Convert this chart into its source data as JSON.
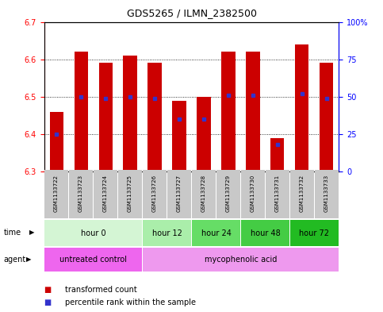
{
  "title": "GDS5265 / ILMN_2382500",
  "samples": [
    "GSM1133722",
    "GSM1133723",
    "GSM1133724",
    "GSM1133725",
    "GSM1133726",
    "GSM1133727",
    "GSM1133728",
    "GSM1133729",
    "GSM1133730",
    "GSM1133731",
    "GSM1133732",
    "GSM1133733"
  ],
  "bar_bottom": 6.3,
  "bar_top": [
    6.46,
    6.62,
    6.59,
    6.61,
    6.59,
    6.49,
    6.5,
    6.62,
    6.62,
    6.39,
    6.64,
    6.59
  ],
  "percentile_rank": [
    25,
    50,
    49,
    50,
    49,
    35,
    35,
    51,
    51,
    18,
    52,
    49
  ],
  "ylim_left": [
    6.3,
    6.7
  ],
  "ylim_right": [
    0,
    100
  ],
  "yticks_left": [
    6.3,
    6.4,
    6.5,
    6.6,
    6.7
  ],
  "yticks_right": [
    0,
    25,
    50,
    75,
    100
  ],
  "ytick_labels_right": [
    "0",
    "25",
    "50",
    "75",
    "100%"
  ],
  "bar_color": "#cc0000",
  "percentile_color": "#3333cc",
  "time_groups": [
    {
      "label": "hour 0",
      "start": 0,
      "end": 4,
      "color": "#d4f5d4"
    },
    {
      "label": "hour 12",
      "start": 4,
      "end": 6,
      "color": "#aaeeaa"
    },
    {
      "label": "hour 24",
      "start": 6,
      "end": 8,
      "color": "#66dd66"
    },
    {
      "label": "hour 48",
      "start": 8,
      "end": 10,
      "color": "#44cc44"
    },
    {
      "label": "hour 72",
      "start": 10,
      "end": 12,
      "color": "#22bb22"
    }
  ],
  "agent_groups": [
    {
      "label": "untreated control",
      "start": 0,
      "end": 4,
      "color": "#ee66ee"
    },
    {
      "label": "mycophenolic acid",
      "start": 4,
      "end": 12,
      "color": "#ee99ee"
    }
  ],
  "legend_items": [
    {
      "label": "transformed count",
      "color": "#cc0000"
    },
    {
      "label": "percentile rank within the sample",
      "color": "#3333cc"
    }
  ],
  "background_color": "#ffffff"
}
